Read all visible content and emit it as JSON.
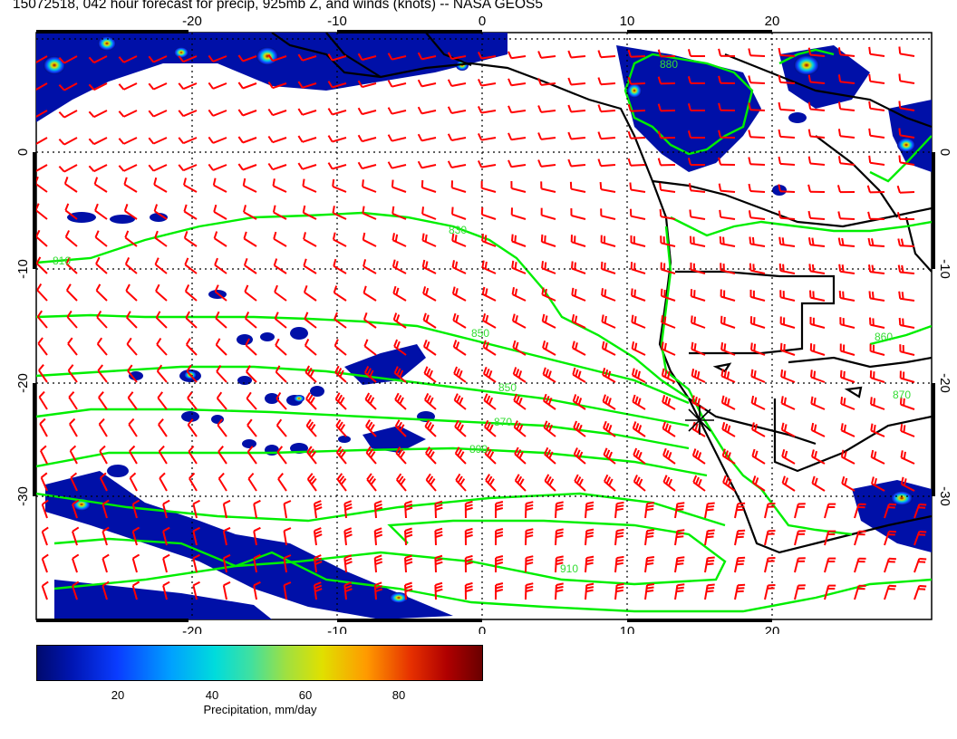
{
  "title": "15072518, 042 hour forecast for precip, 925mb Z, and winds (knots) -- NASA GEOS5",
  "map": {
    "lon_range": [
      -30,
      30
    ],
    "lat_range": [
      -40,
      10
    ],
    "lon_ticks": [
      "-20",
      "-10",
      "0",
      "10",
      "20"
    ],
    "lat_ticks": [
      "0",
      "-10",
      "-20",
      "-30"
    ],
    "contour_labels": [
      "810",
      "830",
      "850",
      "870",
      "890",
      "910",
      "850",
      "860",
      "870",
      "880"
    ],
    "colors": {
      "wind_barbs": "#ff0000",
      "contours": "#00ee00",
      "coastline": "#000000",
      "grid": "#000000"
    }
  },
  "colorbar": {
    "ticks": [
      "20",
      "40",
      "60",
      "80"
    ],
    "title": "Precipitation, mm/day"
  }
}
